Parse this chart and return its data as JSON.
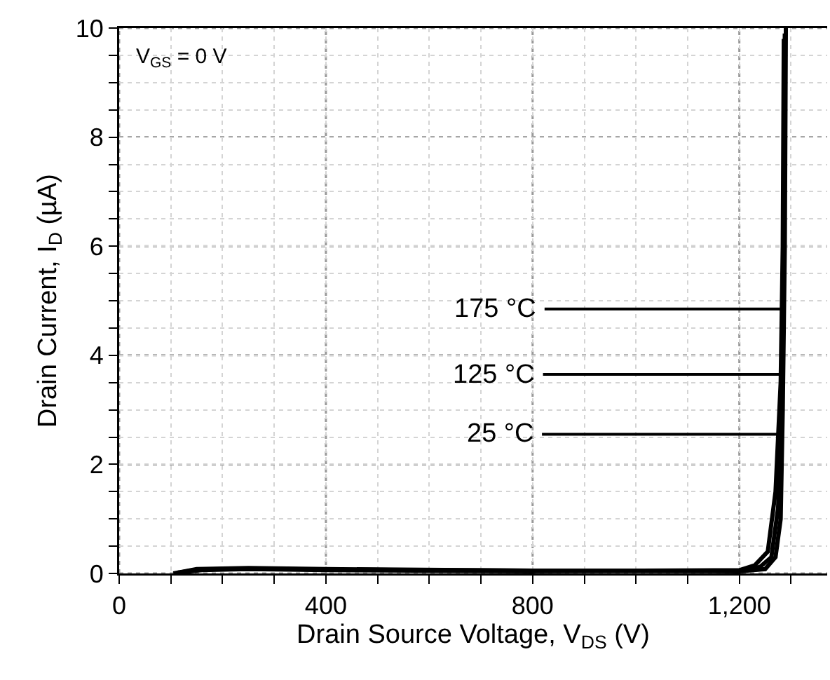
{
  "chart_data": {
    "type": "line",
    "xlabel": "Drain Source Voltage, V$_{DS}$ (V)",
    "ylabel": "Drain Current, I$_{D}$ (µA)",
    "xlim": [
      0,
      1370
    ],
    "ylim": [
      0,
      10
    ],
    "xticks": [
      0,
      {
        "value": 100,
        "label": null
      },
      {
        "value": 200,
        "label": null
      },
      {
        "value": 300,
        "label": null
      },
      400,
      {
        "value": 500,
        "label": null
      },
      {
        "value": 600,
        "label": null
      },
      {
        "value": 700,
        "label": null
      },
      800,
      {
        "value": 900,
        "label": null
      },
      {
        "value": 1000,
        "label": null
      },
      {
        "value": 1100,
        "label": null
      },
      {
        "value": 1200,
        "label": "1,200"
      },
      {
        "value": 1300,
        "label": null
      }
    ],
    "yticks": [
      0,
      {
        "value": 0.5,
        "label": null
      },
      {
        "value": 1,
        "label": null
      },
      {
        "value": 1.5,
        "label": null
      },
      2,
      {
        "value": 2.5,
        "label": null
      },
      {
        "value": 3,
        "label": null
      },
      {
        "value": 3.5,
        "label": null
      },
      4,
      {
        "value": 4.5,
        "label": null
      },
      {
        "value": 5,
        "label": null
      },
      {
        "value": 5.5,
        "label": null
      },
      6,
      {
        "value": 6.5,
        "label": null
      },
      {
        "value": 7,
        "label": null
      },
      {
        "value": 7.5,
        "label": null
      },
      8,
      {
        "value": 8.5,
        "label": null
      },
      {
        "value": 9,
        "label": null
      },
      {
        "value": 9.5,
        "label": null
      },
      10
    ],
    "grid": true,
    "marker": "none",
    "line_style": "solid",
    "series": [
      {
        "color": "#000000",
        "x": [
          105,
          150,
          250,
          400,
          800,
          1200,
          1250,
          1270,
          1280,
          1284,
          1288,
          1290
        ],
        "values": [
          0,
          0.08,
          0.1,
          0.08,
          0.05,
          0.04,
          0.08,
          0.3,
          1,
          3,
          6,
          10
        ]
      },
      {
        "color": "#000000",
        "x": [
          112,
          150,
          250,
          400,
          800,
          1200,
          1240,
          1262,
          1275,
          1282,
          1286,
          1288
        ],
        "values": [
          0.01,
          0.07,
          0.09,
          0.07,
          0.05,
          0.05,
          0.12,
          0.3,
          1.2,
          3,
          6,
          9.9
        ]
      },
      {
        "color": "#000000",
        "x": [
          118,
          160,
          250,
          400,
          800,
          1200,
          1230,
          1255,
          1270,
          1280,
          1284,
          1286
        ],
        "values": [
          0.02,
          0.06,
          0.08,
          0.06,
          0.04,
          0.06,
          0.15,
          0.4,
          1.5,
          3.5,
          6,
          9.8
        ]
      }
    ],
    "annotations": [
      "V$_{GS}$ = 0 V",
      {
        "text": "175 °C",
        "x": 1287,
        "y": 4.85
      },
      {
        "text": "125 °C",
        "x": 1284,
        "y": 3.65
      },
      {
        "text": "25 °C",
        "x": 1282,
        "y": 2.55
      }
    ]
  }
}
